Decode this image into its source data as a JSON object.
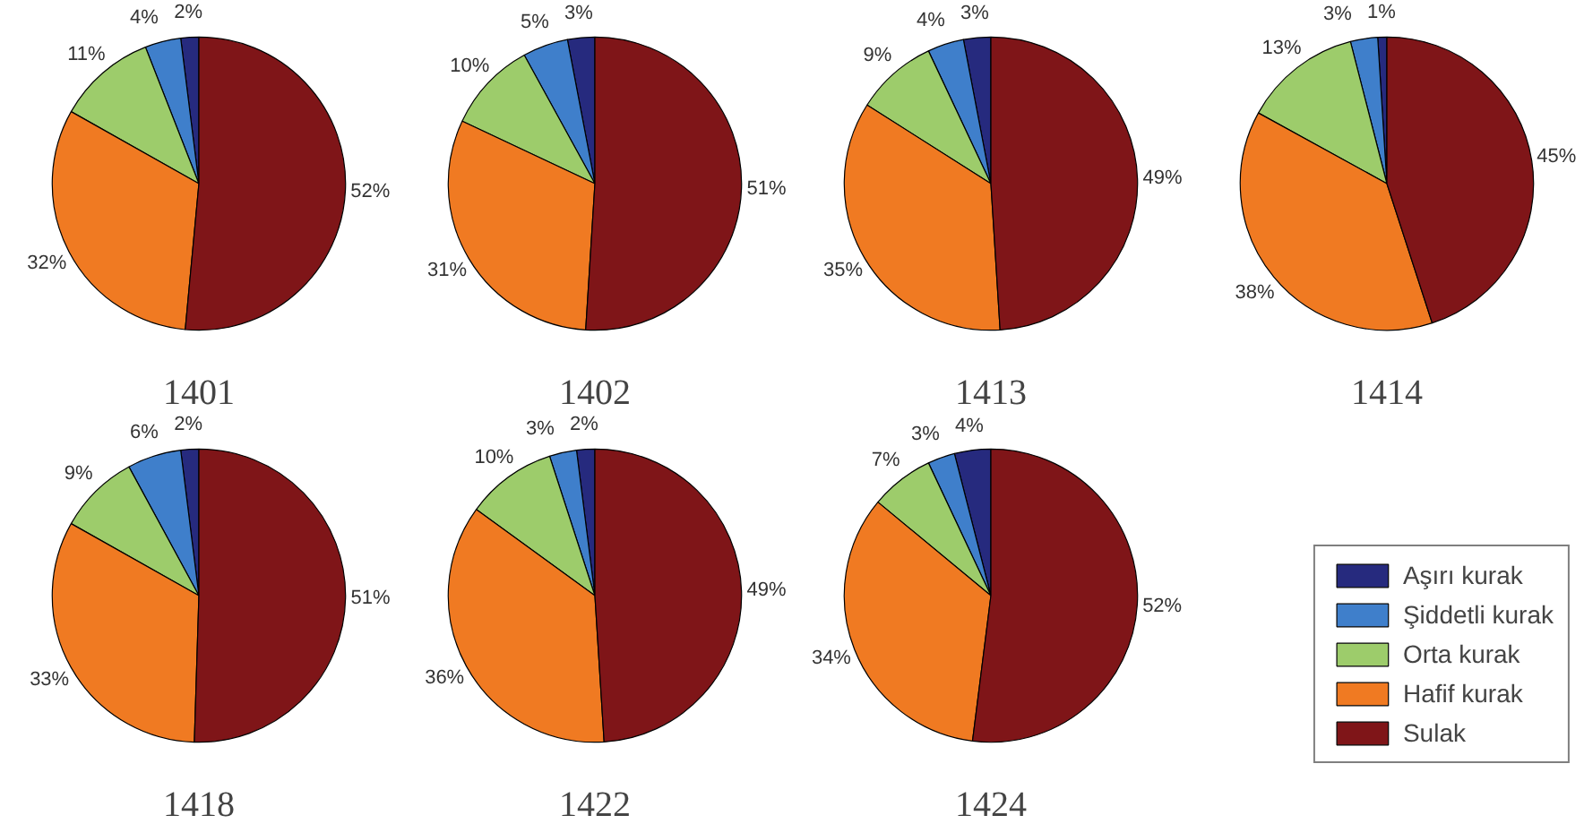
{
  "chart_data": [
    {
      "type": "pie",
      "title": "1401",
      "categories": [
        "Aşırı kurak",
        "Şiddetli kurak",
        "Orta kurak",
        "Hafif kurak",
        "Sulak"
      ],
      "values": [
        2,
        4,
        11,
        32,
        52
      ],
      "value_labels": [
        "2%",
        "4%",
        "11%",
        "32%",
        "52%"
      ],
      "colors": [
        "#262a7e",
        "#3f7fcb",
        "#9dcc6b",
        "#f07a22",
        "#7f1518"
      ],
      "legend": "bottom right"
    },
    {
      "type": "pie",
      "title": "1402",
      "categories": [
        null,
        null,
        null,
        null,
        null
      ],
      "values": [
        3,
        5,
        10,
        31,
        51
      ],
      "value_labels": [
        "3%",
        "5%",
        "10%",
        "31%",
        "51%"
      ],
      "colors": [
        "#262a7e",
        "#3f7fcb",
        "#9dcc6b",
        "#f07a22",
        "#7f1518"
      ]
    },
    {
      "type": "pie",
      "title": "1413",
      "categories": [
        null,
        null,
        null,
        null,
        null
      ],
      "values": [
        3,
        4,
        9,
        35,
        49
      ],
      "value_labels": [
        "3%",
        "4%",
        "9%",
        "35%",
        "49%"
      ],
      "colors": [
        "#262a7e",
        "#3f7fcb",
        "#9dcc6b",
        "#f07a22",
        "#7f1518"
      ]
    },
    {
      "type": "pie",
      "title": "1414",
      "categories": [
        null,
        null,
        null,
        null,
        null
      ],
      "values": [
        1,
        3,
        13,
        38,
        45
      ],
      "value_labels": [
        "1%",
        "3%",
        "13%",
        "38%",
        "45%"
      ],
      "colors": [
        "#262a7e",
        "#3f7fcb",
        "#9dcc6b",
        "#f07a22",
        "#7f1518"
      ]
    },
    {
      "type": "pie",
      "title": "1418",
      "categories": [
        null,
        null,
        null,
        null,
        null
      ],
      "values": [
        2,
        6,
        9,
        33,
        51
      ],
      "value_labels": [
        "2%",
        "6%",
        "9%",
        "33%",
        "51%"
      ],
      "colors": [
        "#262a7e",
        "#3f7fcb",
        "#9dcc6b",
        "#f07a22",
        "#7f1518"
      ]
    },
    {
      "type": "pie",
      "title": "1422",
      "categories": [
        null,
        null,
        null,
        null,
        null
      ],
      "values": [
        2,
        3,
        10,
        36,
        49
      ],
      "value_labels": [
        "2%",
        "3%",
        "10%",
        "36%",
        "49%"
      ],
      "colors": [
        "#262a7e",
        "#3f7fcb",
        "#9dcc6b",
        "#f07a22",
        "#7f1518"
      ]
    },
    {
      "type": "pie",
      "title": "1424",
      "categories": [
        null,
        null,
        null,
        null,
        null
      ],
      "values": [
        4,
        3,
        7,
        34,
        52
      ],
      "value_labels": [
        "4%",
        "3%",
        "7%",
        "34%",
        "52%"
      ],
      "colors": [
        "#262a7e",
        "#3f7fcb",
        "#9dcc6b",
        "#f07a22",
        "#7f1518"
      ]
    }
  ]
}
